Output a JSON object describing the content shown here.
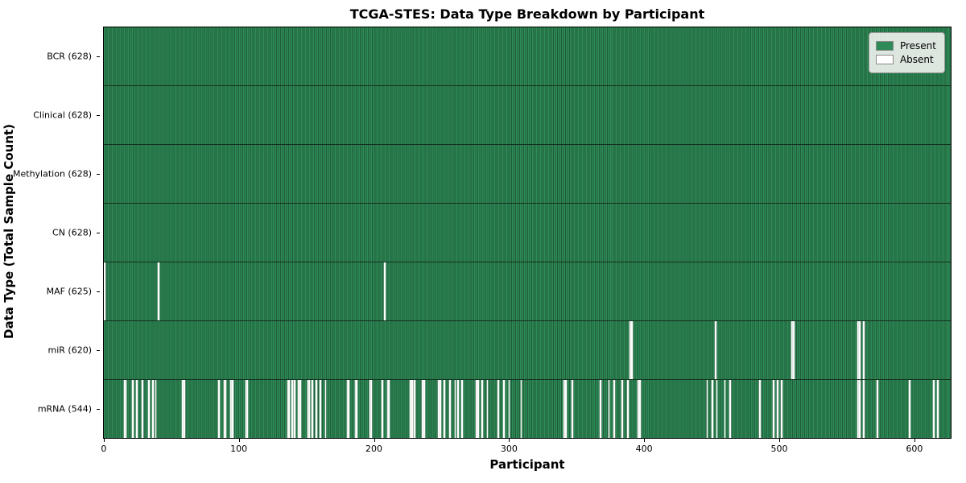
{
  "chart_data": {
    "type": "heatmap",
    "title": "TCGA-STES: Data Type Breakdown by Participant",
    "xlabel": "Participant",
    "ylabel": "Data Type (Total Sample Count)",
    "x_ticks": [
      0,
      100,
      200,
      300,
      400,
      500,
      600
    ],
    "n_participants": 628,
    "xlim": [
      -0.5,
      627.5
    ],
    "grid": false,
    "legend_position": "upper right",
    "colors": {
      "present": "#2e8b57",
      "present_stripe_dark": "#1f5c3a",
      "absent": "#fdfdfd",
      "row_divider": "#15301f",
      "axis": "#000000"
    },
    "legend": [
      {
        "label": "Present",
        "color": "#2e8b57"
      },
      {
        "label": "Absent",
        "color": "#ffffff"
      }
    ],
    "rows": [
      {
        "data_type": "BCR",
        "label": "BCR (628)",
        "present_count": 628,
        "absent_participants": []
      },
      {
        "data_type": "Clinical",
        "label": "Clinical (628)",
        "present_count": 628,
        "absent_participants": []
      },
      {
        "data_type": "Methylation",
        "label": "Methylation (628)",
        "present_count": 628,
        "absent_participants": []
      },
      {
        "data_type": "CN",
        "label": "CN (628)",
        "present_count": 628,
        "absent_participants": []
      },
      {
        "data_type": "MAF",
        "label": "MAF (625)",
        "present_count": 625,
        "absent_participants": [
          0,
          40,
          208
        ]
      },
      {
        "data_type": "miR",
        "label": "miR (620)",
        "present_count": 620,
        "absent_participants": [
          390,
          391,
          453,
          510,
          511,
          559,
          560,
          563
        ]
      },
      {
        "data_type": "mRNA",
        "label": "mRNA (544)",
        "present_count": 544,
        "absent_participants": [
          15,
          16,
          21,
          24,
          28,
          33,
          36,
          38,
          58,
          59,
          85,
          89,
          90,
          94,
          95,
          105,
          106,
          136,
          137,
          139,
          141,
          144,
          145,
          151,
          152,
          154,
          157,
          160,
          164,
          180,
          181,
          186,
          187,
          197,
          198,
          206,
          210,
          211,
          227,
          228,
          230,
          236,
          237,
          248,
          249,
          252,
          256,
          260,
          262,
          265,
          276,
          277,
          280,
          284,
          292,
          296,
          300,
          309,
          341,
          342,
          347,
          368,
          374,
          378,
          384,
          388,
          396,
          397,
          447,
          451,
          454,
          460,
          464,
          486,
          496,
          499,
          502,
          559,
          560,
          563,
          573,
          597,
          615,
          618
        ]
      }
    ]
  }
}
